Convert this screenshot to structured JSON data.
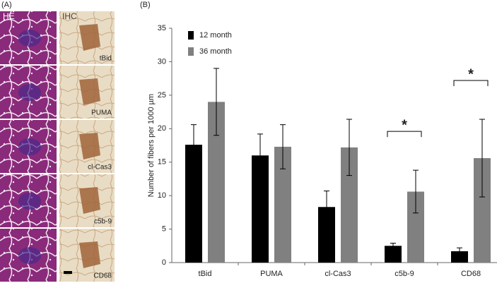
{
  "panel_a": {
    "label": "(A)",
    "columns": [
      "HE",
      "IHC"
    ],
    "rows": [
      "tBid",
      "PUMA",
      "cl-Cas3",
      "c5b-9",
      "CD68"
    ]
  },
  "chart_data": {
    "type": "bar",
    "panel_label": "(B)",
    "ylabel": "Number of fibers per 1000 µm",
    "categories": [
      "tBid",
      "PUMA",
      "cl-Cas3",
      "c5b-9",
      "CD68"
    ],
    "series": [
      {
        "name": "12 month",
        "color": "#000000",
        "values": [
          17.6,
          16.0,
          8.3,
          2.5,
          1.7
        ],
        "errors": [
          3.0,
          3.2,
          2.4,
          0.4,
          0.5
        ]
      },
      {
        "name": "36 month",
        "color": "#808080",
        "values": [
          24.0,
          17.3,
          17.2,
          10.6,
          15.6
        ],
        "errors": [
          5.0,
          3.3,
          4.2,
          3.2,
          5.8
        ]
      }
    ],
    "ylim": [
      0,
      35
    ],
    "yticks": [
      0,
      5,
      10,
      15,
      20,
      25,
      30,
      35
    ],
    "significance": [
      {
        "label": "*",
        "category": "c5b-9"
      },
      {
        "label": "*",
        "category": "CD68"
      }
    ]
  }
}
